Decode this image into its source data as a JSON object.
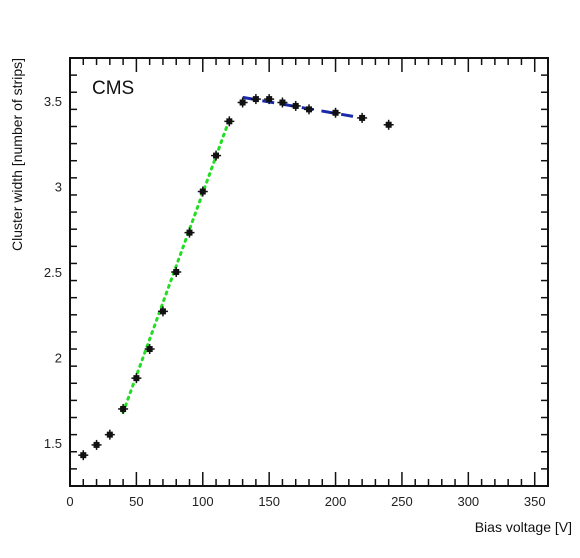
{
  "chart_data": {
    "type": "scatter",
    "watermark": "CMS",
    "xlabel": "Bias voltage [V]",
    "ylabel": "Cluster width [number of strips]",
    "xlim": [
      0,
      360
    ],
    "ylim": [
      1.25,
      3.75
    ],
    "xticks": [
      0,
      50,
      100,
      150,
      200,
      250,
      300,
      350
    ],
    "yticks": [
      1.5,
      2,
      2.5,
      3,
      3.5
    ],
    "series": [
      {
        "marker": "cross",
        "color": "#111111",
        "points": [
          {
            "x": 10,
            "y": 1.43
          },
          {
            "x": 20,
            "y": 1.49
          },
          {
            "x": 30,
            "y": 1.55
          },
          {
            "x": 40,
            "y": 1.7
          },
          {
            "x": 50,
            "y": 1.88
          },
          {
            "x": 60,
            "y": 2.05
          },
          {
            "x": 70,
            "y": 2.27
          },
          {
            "x": 80,
            "y": 2.5
          },
          {
            "x": 90,
            "y": 2.73
          },
          {
            "x": 100,
            "y": 2.97
          },
          {
            "x": 110,
            "y": 3.18
          },
          {
            "x": 120,
            "y": 3.38
          },
          {
            "x": 130,
            "y": 3.49
          },
          {
            "x": 140,
            "y": 3.51
          },
          {
            "x": 150,
            "y": 3.51
          },
          {
            "x": 160,
            "y": 3.49
          },
          {
            "x": 170,
            "y": 3.47
          },
          {
            "x": 180,
            "y": 3.45
          },
          {
            "x": 200,
            "y": 3.43
          },
          {
            "x": 220,
            "y": 3.4
          },
          {
            "x": 240,
            "y": 3.36
          }
        ]
      }
    ],
    "fits": [
      {
        "style": "dotted",
        "color": "#22dd22",
        "points": [
          {
            "x": 40,
            "y": 1.68
          },
          {
            "x": 120,
            "y": 3.39
          }
        ]
      },
      {
        "style": "dashed",
        "color": "#1a2aa8",
        "points": [
          {
            "x": 130,
            "y": 3.52
          },
          {
            "x": 220,
            "y": 3.4
          }
        ]
      }
    ],
    "grid": false
  }
}
